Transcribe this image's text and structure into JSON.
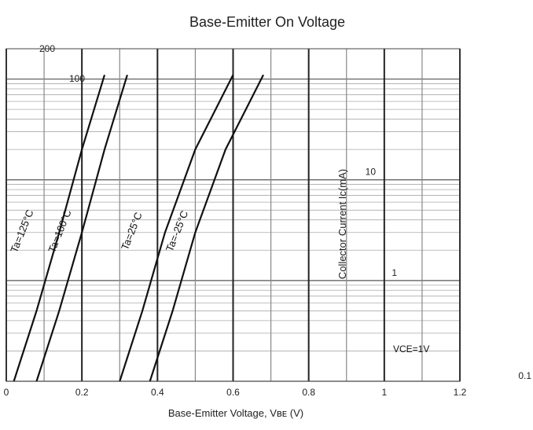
{
  "chart_data": {
    "type": "line",
    "title": "Base-Emitter On Voltage",
    "xlabel": "Base-Emitter Voltage, Vʙᴇ (V)",
    "ylabel": "Collector Current  Ic(mA)",
    "x_ticks": [
      "0",
      "0.2",
      "0.4",
      "0.6",
      "0.8",
      "1",
      "1.2"
    ],
    "y_ticks": [
      "200",
      "100",
      "10",
      "1",
      "0.1"
    ],
    "xlim": [
      0,
      1.2
    ],
    "ylim": [
      0.1,
      200
    ],
    "y_scale": "log",
    "grid": true,
    "annotation": "VCE=1V",
    "series": [
      {
        "name": "Ta=125°C",
        "x": [
          0.02,
          0.08,
          0.14,
          0.2,
          0.26
        ],
        "y": [
          0.1,
          0.5,
          3,
          20,
          110
        ]
      },
      {
        "name": "Ta=100°C",
        "x": [
          0.08,
          0.14,
          0.2,
          0.26,
          0.32
        ],
        "y": [
          0.1,
          0.5,
          3,
          20,
          110
        ]
      },
      {
        "name": "Ta=25°C",
        "x": [
          0.3,
          0.36,
          0.42,
          0.5,
          0.6
        ],
        "y": [
          0.1,
          0.5,
          3,
          20,
          110
        ]
      },
      {
        "name": "Ta=-25°C",
        "x": [
          0.38,
          0.44,
          0.5,
          0.58,
          0.68
        ],
        "y": [
          0.1,
          0.5,
          3,
          20,
          110
        ]
      }
    ]
  }
}
